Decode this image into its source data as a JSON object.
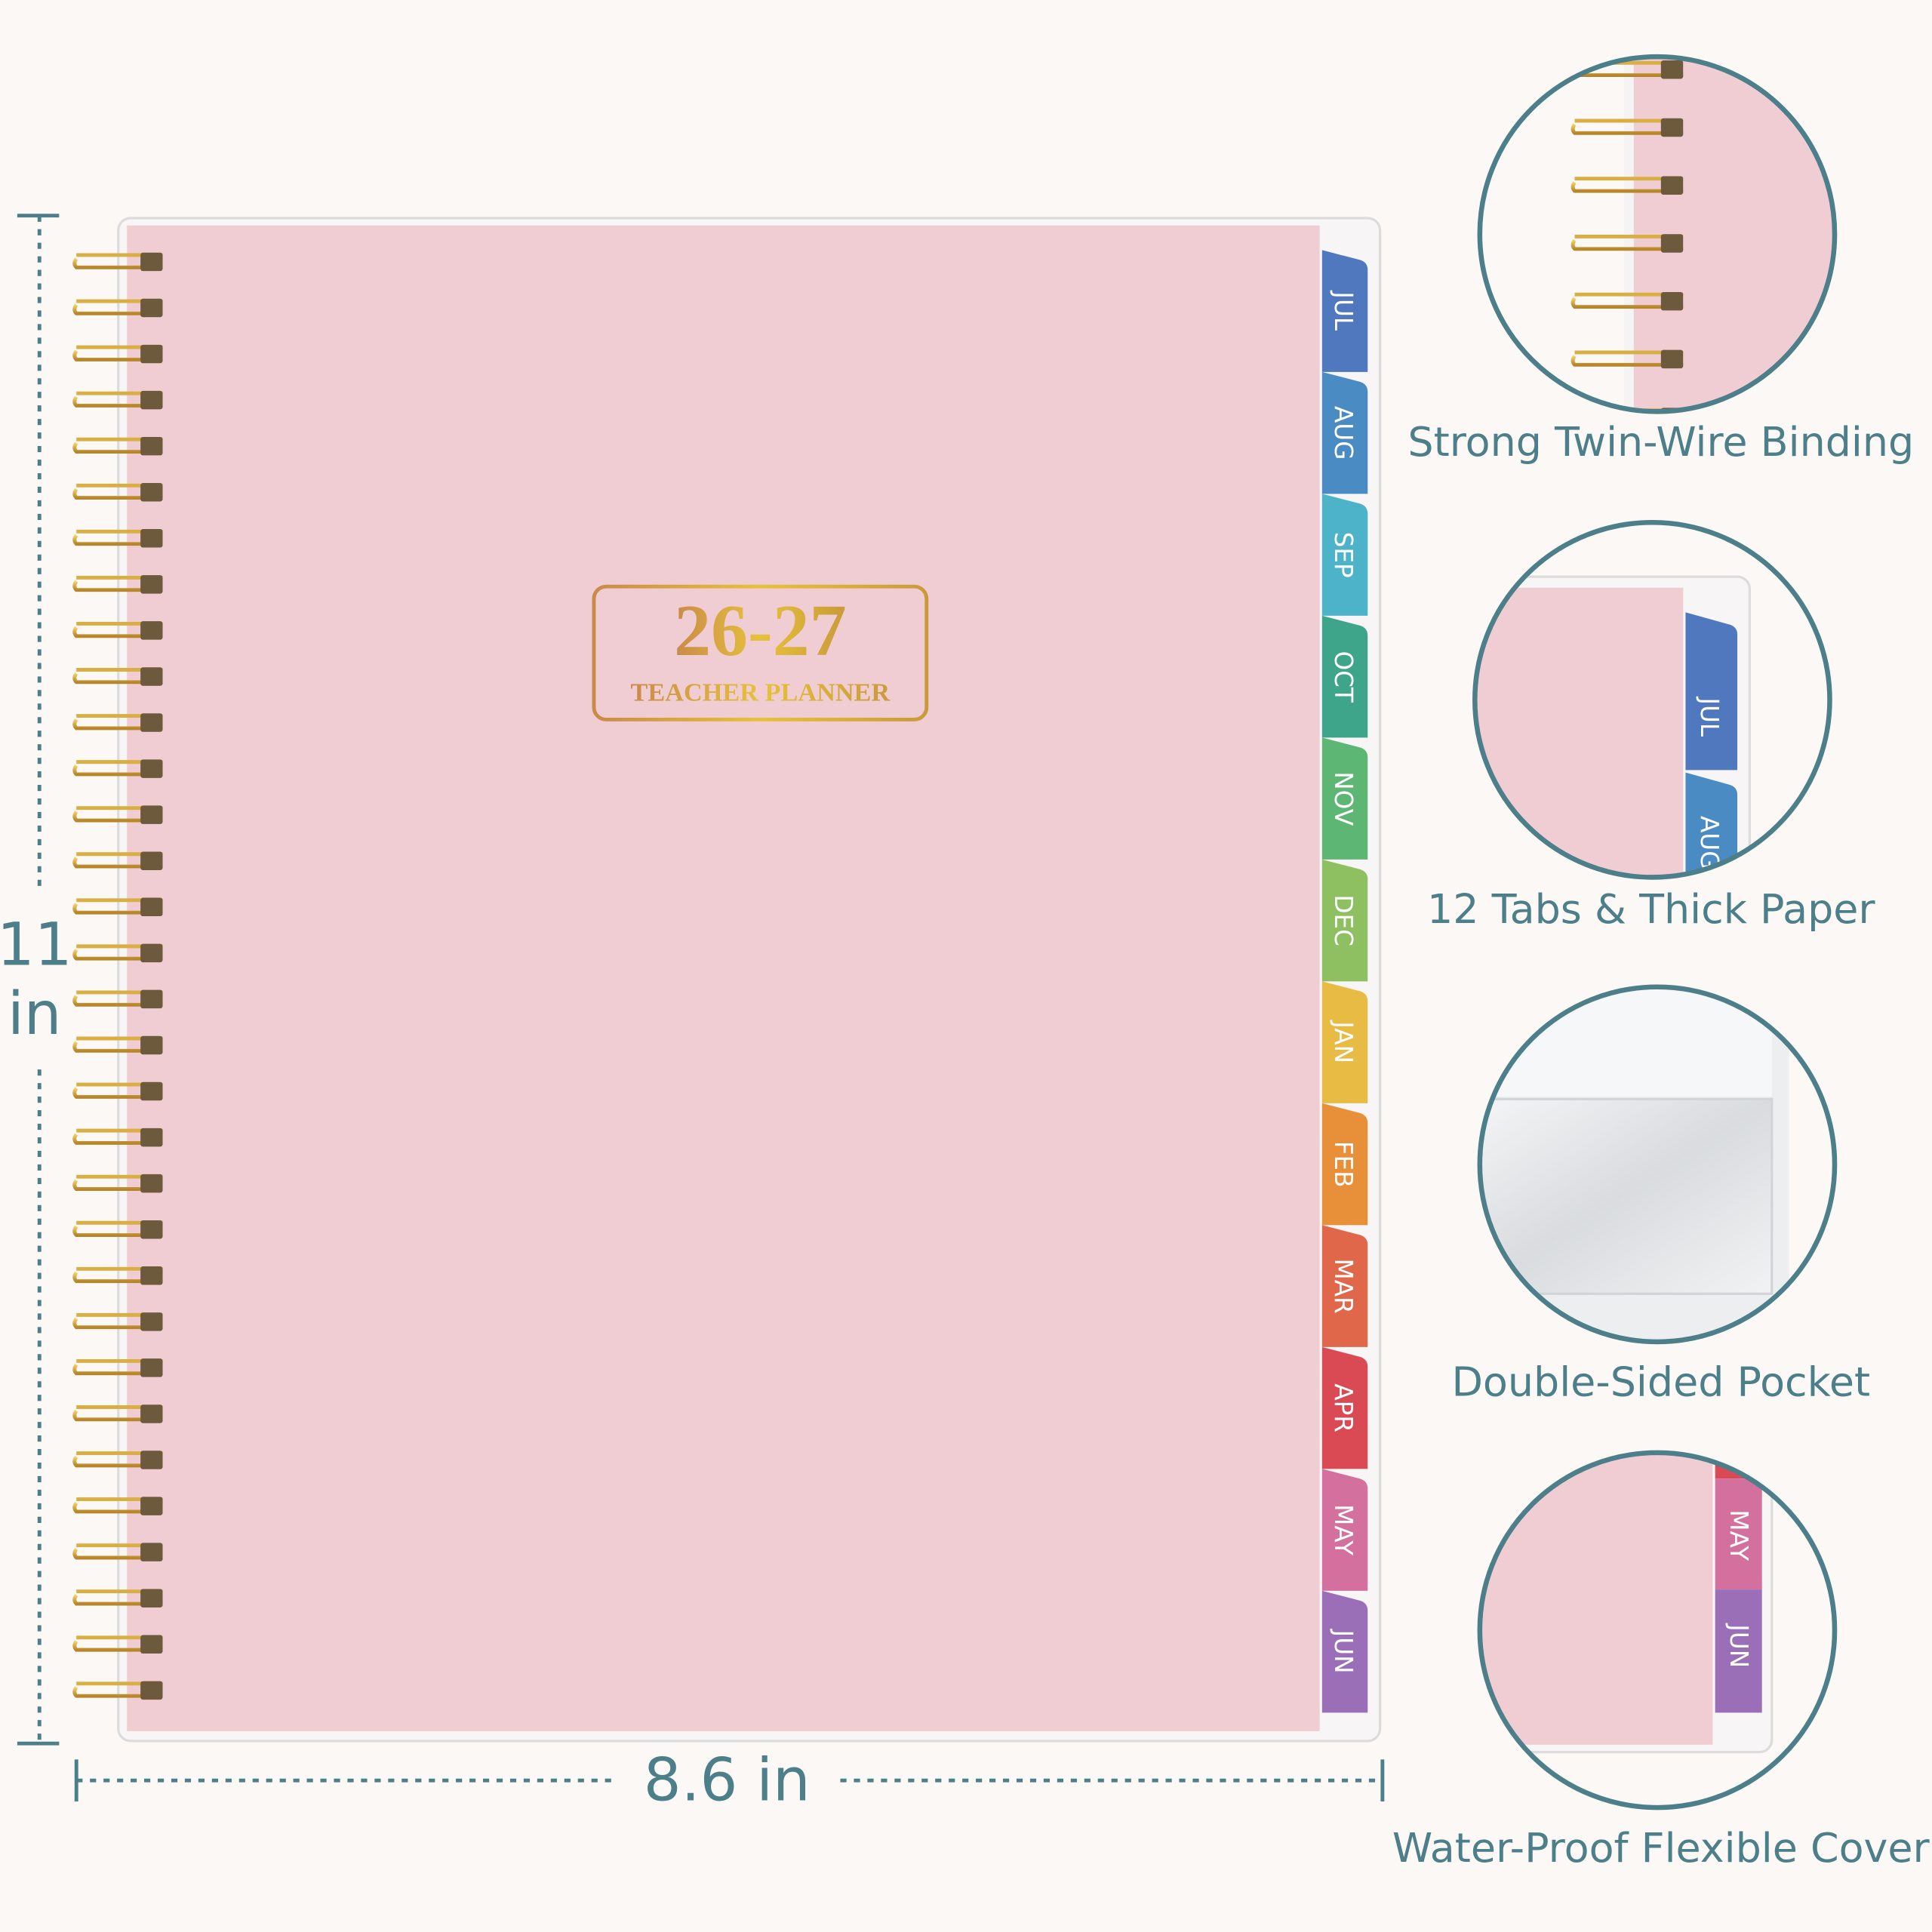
{
  "dimensions": {
    "height": [
      "11",
      "in"
    ],
    "width": "8.6 in"
  },
  "cover": {
    "year": "26-27",
    "subtitle": "TEACHER PLANNER",
    "tabs": [
      "JUL",
      "AUG",
      "SEP",
      "OCT",
      "NOV",
      "DEC",
      "JAN",
      "FEB",
      "MAR",
      "APR",
      "MAY",
      "JUN"
    ]
  },
  "features": [
    {
      "caption": "Strong Twin-Wire Binding"
    },
    {
      "caption": "12 Tabs & Thick Paper",
      "tabs": [
        "JUL",
        "AUG"
      ]
    },
    {
      "caption": "Double-Sided Pocket"
    },
    {
      "caption": "Water-Proof Flexible Cover",
      "tabs": [
        "MAY",
        "JUN"
      ]
    }
  ]
}
